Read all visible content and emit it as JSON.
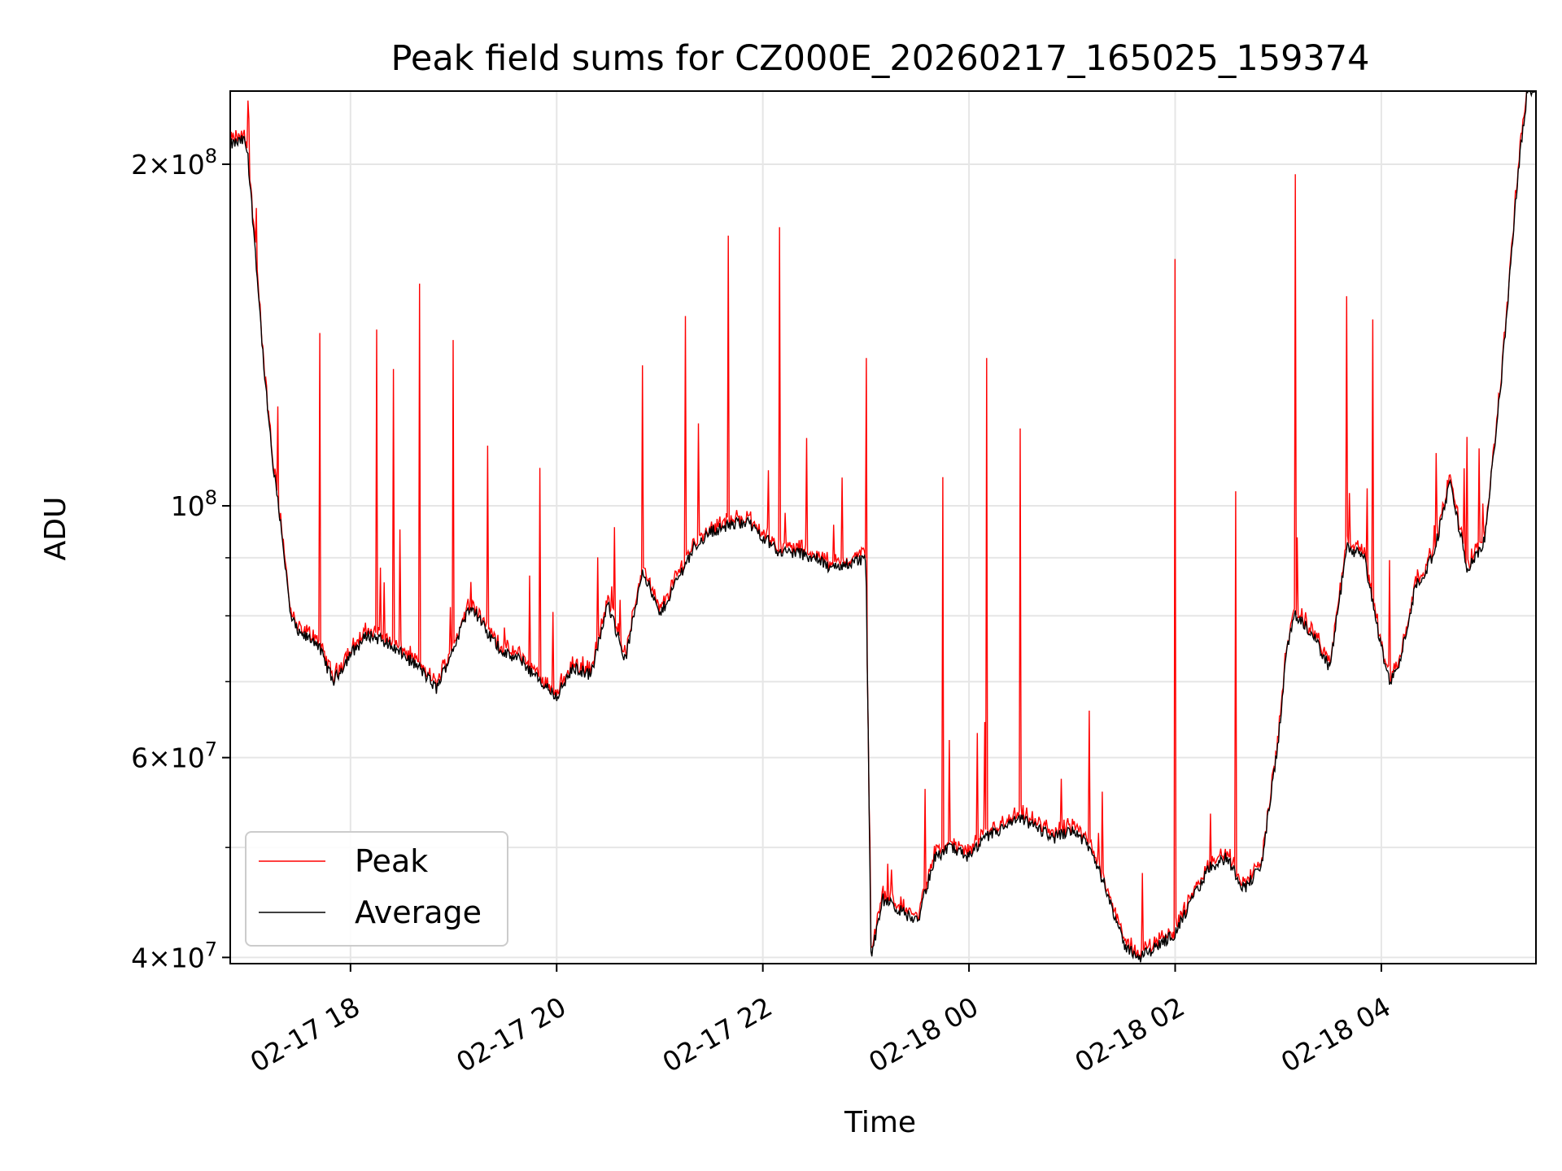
{
  "chart_data": {
    "type": "line",
    "title": "Peak field sums for CZ000E_20260217_165025_159374",
    "xlabel": "Time",
    "ylabel": "ADU",
    "yscale": "log",
    "ylim": [
      39500000,
      232000000
    ],
    "xlim": [
      "2026-02-17 16:50",
      "2026-02-18 05:30"
    ],
    "grid": true,
    "legend": {
      "placement": "lower-left",
      "entries": [
        "Peak",
        "Average"
      ]
    },
    "x_ticks": [
      "02-17 18",
      "02-17 20",
      "02-17 22",
      "02-18 00",
      "02-18 02",
      "02-18 04"
    ],
    "y_ticks": [
      {
        "value": 40000000,
        "mantissa": "4",
        "exp": "7"
      },
      {
        "value": 60000000,
        "mantissa": "6",
        "exp": "7"
      },
      {
        "value": 100000000,
        "mantissa": "",
        "exp": "8"
      },
      {
        "value": 200000000,
        "mantissa": "2",
        "exp": "8"
      }
    ],
    "y_minor_ticks": [
      50000000,
      70000000,
      80000000,
      90000000
    ],
    "colors": {
      "peak": "#ff0000",
      "average": "#000000"
    },
    "average_points": [
      [
        "2026-02-17 16:50",
        208000000
      ],
      [
        "2026-02-17 16:58",
        210000000
      ],
      [
        "2026-02-17 17:00",
        205000000
      ],
      [
        "2026-02-17 17:05",
        165000000
      ],
      [
        "2026-02-17 17:10",
        130000000
      ],
      [
        "2026-02-17 17:15",
        108000000
      ],
      [
        "2026-02-17 17:20",
        95000000
      ],
      [
        "2026-02-17 17:25",
        80000000
      ],
      [
        "2026-02-17 17:30",
        77000000
      ],
      [
        "2026-02-17 17:40",
        76000000
      ],
      [
        "2026-02-17 17:50",
        70000000
      ],
      [
        "2026-02-17 18:00",
        74000000
      ],
      [
        "2026-02-17 18:10",
        77000000
      ],
      [
        "2026-02-17 18:20",
        76000000
      ],
      [
        "2026-02-17 18:30",
        74000000
      ],
      [
        "2026-02-17 18:40",
        72000000
      ],
      [
        "2026-02-17 18:50",
        69000000
      ],
      [
        "2026-02-17 19:00",
        75000000
      ],
      [
        "2026-02-17 19:10",
        82000000
      ],
      [
        "2026-02-17 19:20",
        77000000
      ],
      [
        "2026-02-17 19:30",
        74000000
      ],
      [
        "2026-02-17 19:40",
        73000000
      ],
      [
        "2026-02-17 19:50",
        70000000
      ],
      [
        "2026-02-17 20:00",
        68000000
      ],
      [
        "2026-02-17 20:10",
        72000000
      ],
      [
        "2026-02-17 20:20",
        71000000
      ],
      [
        "2026-02-17 20:30",
        82000000
      ],
      [
        "2026-02-17 20:40",
        73000000
      ],
      [
        "2026-02-17 20:50",
        88000000
      ],
      [
        "2026-02-17 21:00",
        80000000
      ],
      [
        "2026-02-17 21:10",
        86000000
      ],
      [
        "2026-02-17 21:20",
        92000000
      ],
      [
        "2026-02-17 21:30",
        95000000
      ],
      [
        "2026-02-17 21:40",
        96000000
      ],
      [
        "2026-02-17 21:50",
        97000000
      ],
      [
        "2026-02-17 22:00",
        94000000
      ],
      [
        "2026-02-17 22:10",
        91000000
      ],
      [
        "2026-02-17 22:20",
        91000000
      ],
      [
        "2026-02-17 22:30",
        90000000
      ],
      [
        "2026-02-17 22:40",
        88000000
      ],
      [
        "2026-02-17 22:50",
        89000000
      ],
      [
        "2026-02-17 23:00",
        90000000
      ],
      [
        "2026-02-17 23:03",
        40000000
      ],
      [
        "2026-02-17 23:10",
        45000000
      ],
      [
        "2026-02-17 23:20",
        44000000
      ],
      [
        "2026-02-17 23:30",
        43000000
      ],
      [
        "2026-02-17 23:40",
        49000000
      ],
      [
        "2026-02-17 23:50",
        50000000
      ],
      [
        "2026-02-18 00:00",
        49000000
      ],
      [
        "2026-02-18 00:10",
        51000000
      ],
      [
        "2026-02-18 00:20",
        52000000
      ],
      [
        "2026-02-18 00:30",
        53000000
      ],
      [
        "2026-02-18 00:40",
        52000000
      ],
      [
        "2026-02-18 00:50",
        51000000
      ],
      [
        "2026-02-18 01:00",
        52000000
      ],
      [
        "2026-02-18 01:10",
        50000000
      ],
      [
        "2026-02-18 01:20",
        46000000
      ],
      [
        "2026-02-18 01:30",
        41000000
      ],
      [
        "2026-02-18 01:40",
        40000000
      ],
      [
        "2026-02-18 01:50",
        41000000
      ],
      [
        "2026-02-18 02:00",
        42000000
      ],
      [
        "2026-02-18 02:10",
        45000000
      ],
      [
        "2026-02-18 02:20",
        48000000
      ],
      [
        "2026-02-18 02:30",
        49000000
      ],
      [
        "2026-02-18 02:40",
        46000000
      ],
      [
        "2026-02-18 02:50",
        48000000
      ],
      [
        "2026-02-18 03:00",
        62000000
      ],
      [
        "2026-02-18 03:05",
        75000000
      ],
      [
        "2026-02-18 03:10",
        80000000
      ],
      [
        "2026-02-18 03:20",
        77000000
      ],
      [
        "2026-02-18 03:30",
        72000000
      ],
      [
        "2026-02-18 03:40",
        92000000
      ],
      [
        "2026-02-18 03:50",
        90000000
      ],
      [
        "2026-02-18 04:00",
        75000000
      ],
      [
        "2026-02-18 04:05",
        70000000
      ],
      [
        "2026-02-18 04:10",
        72000000
      ],
      [
        "2026-02-18 04:20",
        85000000
      ],
      [
        "2026-02-18 04:30",
        90000000
      ],
      [
        "2026-02-18 04:40",
        105000000
      ],
      [
        "2026-02-18 04:50",
        88000000
      ],
      [
        "2026-02-18 05:00",
        93000000
      ],
      [
        "2026-02-18 05:10",
        130000000
      ],
      [
        "2026-02-18 05:20",
        200000000
      ],
      [
        "2026-02-18 05:25",
        232000000
      ],
      [
        "2026-02-18 05:30",
        232000000
      ]
    ],
    "peak_spikes": [
      [
        "2026-02-17 17:05",
        183000000
      ],
      [
        "2026-02-17 17:42",
        142000000
      ],
      [
        "2026-02-17 18:15",
        143000000
      ],
      [
        "2026-02-17 18:25",
        132000000
      ],
      [
        "2026-02-17 18:40",
        157000000
      ],
      [
        "2026-02-17 19:00",
        140000000
      ],
      [
        "2026-02-17 19:20",
        113000000
      ],
      [
        "2026-02-17 19:50",
        108000000
      ],
      [
        "2026-02-17 20:50",
        133000000
      ],
      [
        "2026-02-17 21:15",
        147000000
      ],
      [
        "2026-02-17 21:40",
        173000000
      ],
      [
        "2026-02-17 22:10",
        176000000
      ],
      [
        "2026-02-17 23:00",
        135000000
      ],
      [
        "2026-02-17 23:45",
        106000000
      ],
      [
        "2026-02-18 00:10",
        135000000
      ],
      [
        "2026-02-18 00:30",
        117000000
      ],
      [
        "2026-02-18 01:10",
        66000000
      ],
      [
        "2026-02-18 02:00",
        165000000
      ],
      [
        "2026-02-18 02:35",
        103000000
      ],
      [
        "2026-02-18 03:10",
        196000000
      ],
      [
        "2026-02-18 03:40",
        153000000
      ],
      [
        "2026-02-18 03:55",
        146000000
      ],
      [
        "2026-02-18 04:50",
        115000000
      ]
    ]
  }
}
